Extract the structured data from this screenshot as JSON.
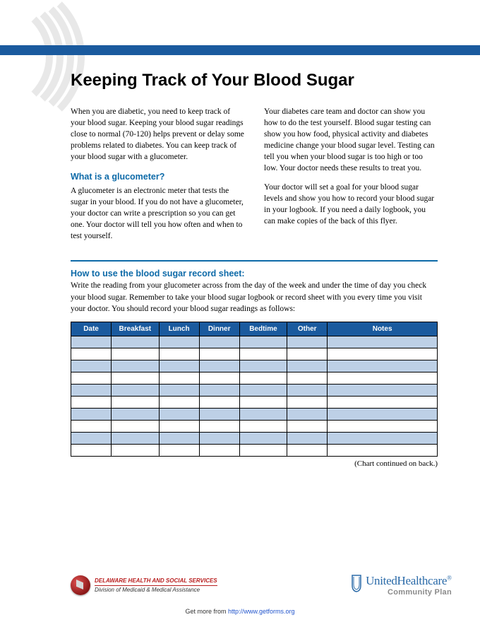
{
  "colors": {
    "blue_accent": "#0d6aa8",
    "header_blue": "#1a5a9e",
    "row_blue": "#bdd0e6",
    "row_white": "#ffffff",
    "dhss_red": "#b92020",
    "uhc_blue": "#2a6aa8",
    "link_blue": "#2255cc"
  },
  "title": "Keeping Track of Your Blood Sugar",
  "col1": {
    "p1": "When you are diabetic, you need to keep track of your blood sugar. Keeping your blood sugar readings close to normal (70-120) helps prevent or delay some problems related to diabetes. You can keep track of your blood sugar with a glucometer.",
    "sub": "What is a glucometer?",
    "p2": "A glucometer is an electronic meter that tests the sugar in your blood. If you do not have a glucometer, your doctor can write a prescription so you can get one. Your doctor will tell you how often and when to test yourself."
  },
  "col2": {
    "p1": "Your diabetes care team and doctor can show you how to do the test yourself. Blood sugar testing can show you how food, physical activity and diabetes medicine change your blood sugar level. Testing can tell you when your blood sugar is too high or too low. Your doctor needs these results to treat you.",
    "p2": "Your doctor will set a goal for your blood sugar levels and show you how to record your blood sugar in your logbook. If you need a daily logbook, you can make copies of the back of this flyer."
  },
  "howto": {
    "head": "How to use the blood sugar record sheet:",
    "text": "Write the reading from your glucometer across from the day of the week and under the time of day you check your blood sugar. Remember to take your blood sugar logbook or record sheet with you every time you visit your doctor. You should record your blood sugar readings as follows:"
  },
  "table": {
    "columns": [
      "Date",
      "Breakfast",
      "Lunch",
      "Dinner",
      "Bedtime",
      "Other",
      "Notes"
    ],
    "col_widths_pct": [
      11,
      13,
      11,
      11,
      13,
      11,
      30
    ],
    "num_rows": 10,
    "note": "(Chart continued on back.)"
  },
  "footer": {
    "dhss_line1": "DELAWARE HEALTH AND SOCIAL SERVICES",
    "dhss_line2": "Division of Medicaid & Medical Assistance",
    "uhc_name": "UnitedHealthcare",
    "uhc_reg": "®",
    "uhc_sub": "Community Plan"
  },
  "getmore": {
    "prefix": "Get more from ",
    "url": "http://www.getforms.org"
  }
}
